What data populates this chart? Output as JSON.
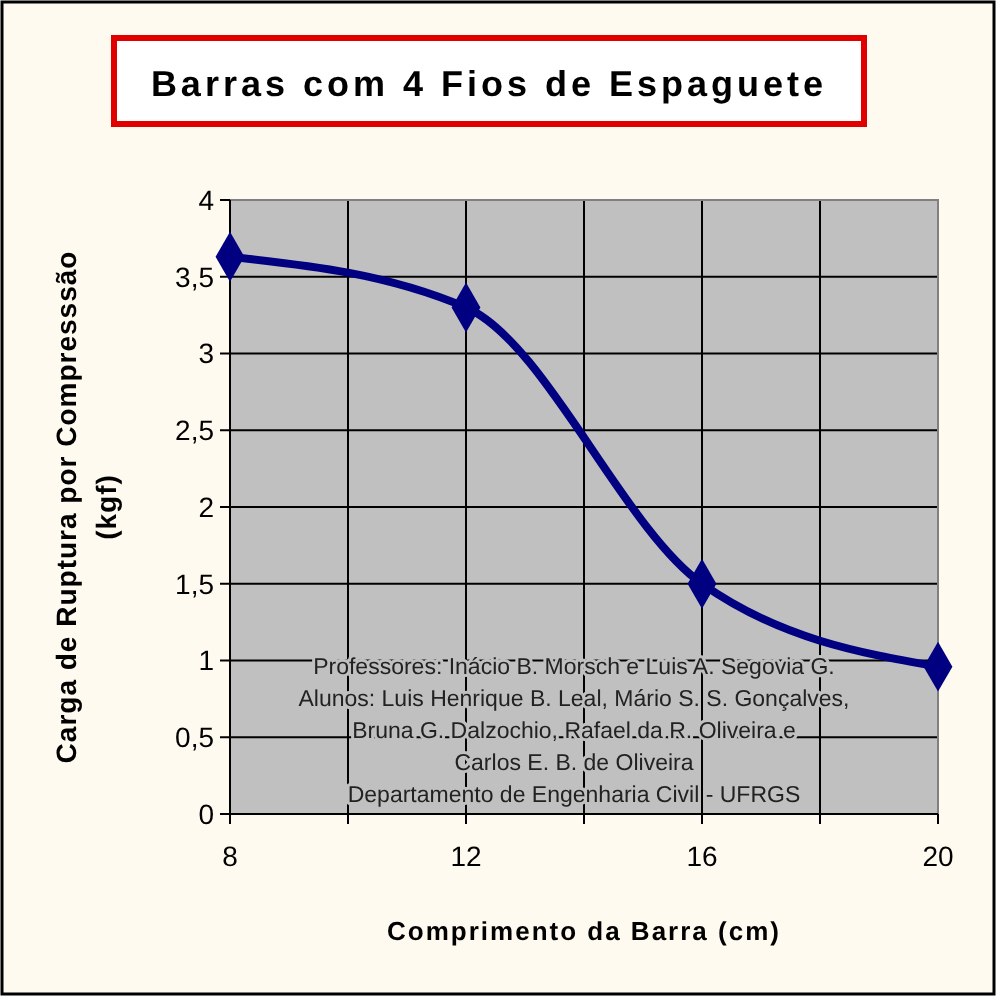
{
  "chart_data": {
    "type": "line",
    "title": "Barras com 4 Fios de Espaguete",
    "xlabel": "Comprimento da Barra (cm)",
    "ylabel": "Carga de Ruptura por Compresssão\n(kgf)",
    "x": [
      8,
      12,
      16,
      20
    ],
    "series": [
      {
        "color": "#000080",
        "values": [
          3.63,
          3.3,
          1.5,
          0.96
        ]
      }
    ],
    "xlim": [
      8,
      20
    ],
    "xticks": [
      8,
      {
        "value": 10,
        "label": null
      },
      12,
      {
        "value": 14,
        "label": null
      },
      16,
      {
        "value": 18,
        "label": null
      },
      20
    ],
    "ylim": [
      0,
      4
    ],
    "yticks": [
      0,
      {
        "value": 0.5,
        "label": "0,5"
      },
      1,
      {
        "value": 1.5,
        "label": "1,5"
      },
      2,
      {
        "value": 2.5,
        "label": "2,5"
      },
      3,
      {
        "value": 3.5,
        "label": "3,5"
      },
      4
    ],
    "grid": true,
    "marker": "diamond",
    "line_style": "solid",
    "annotations": [
      "Professores: Inácio B. Morsch e Luis A. Segovia G.",
      "Alunos: Luis Henrique B. Leal, Mário S. S. Gonçalves,",
      "Bruna G. Dalzochio, Rafael da R. Oliveira e",
      "Carlos E. B. de Oliveira",
      "Departamento de Engenharia Civil - UFRGS"
    ]
  }
}
